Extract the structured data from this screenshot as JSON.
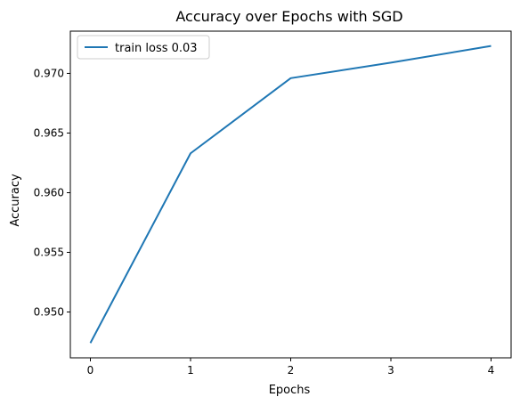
{
  "chart_data": {
    "type": "line",
    "title": "Accuracy over Epochs with SGD",
    "xlabel": "Epochs",
    "ylabel": "Accuracy",
    "x": [
      0,
      1,
      2,
      3,
      4
    ],
    "series": [
      {
        "name": "train loss 0.03",
        "values": [
          0.9474,
          0.9633,
          0.9696,
          0.9709,
          0.9723
        ],
        "color": "#1f77b4"
      }
    ],
    "xticks": [
      0,
      1,
      2,
      3,
      4
    ],
    "xtick_labels": [
      "0",
      "1",
      "2",
      "3",
      "4"
    ],
    "yticks": [
      0.95,
      0.955,
      0.96,
      0.965,
      0.97
    ],
    "ytick_labels": [
      "0.950",
      "0.955",
      "0.960",
      "0.965",
      "0.970"
    ],
    "xlim": [
      -0.2,
      4.2
    ],
    "ylim": [
      0.94616,
      0.97354
    ],
    "grid": false,
    "legend_position": "upper-left"
  }
}
